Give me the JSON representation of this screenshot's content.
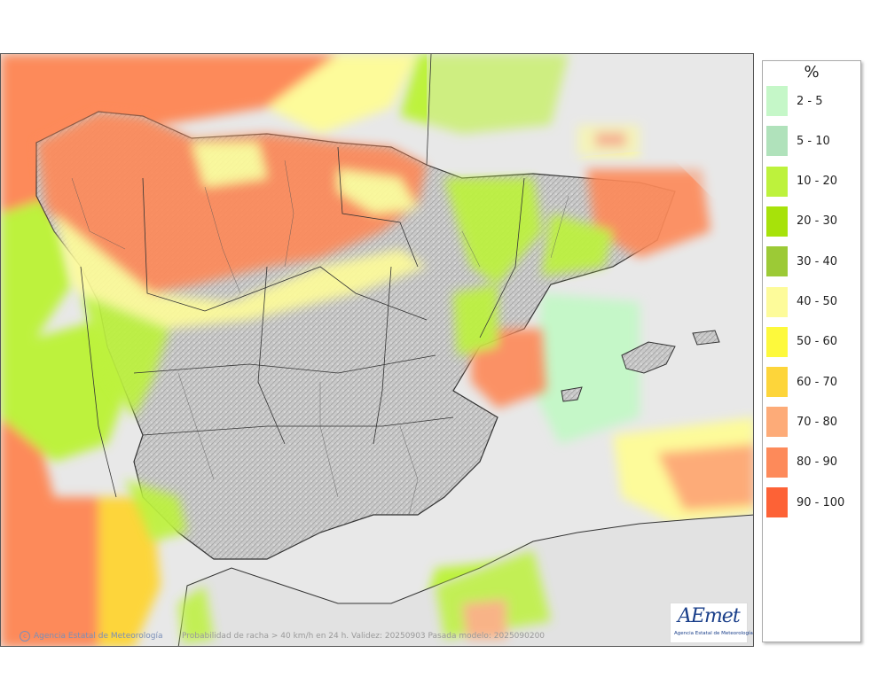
{
  "legend": {
    "title": "%",
    "items": [
      {
        "label": "2 - 5",
        "color": "#c5f7c8"
      },
      {
        "label": "5 - 10",
        "color": "#b0e2bb"
      },
      {
        "label": "10 - 20",
        "color": "#bdf23c"
      },
      {
        "label": "20 - 30",
        "color": "#a7e20a"
      },
      {
        "label": "30 - 40",
        "color": "#9cca36"
      },
      {
        "label": "40 - 50",
        "color": "#fdfb9a"
      },
      {
        "label": "50 - 60",
        "color": "#fdf93c"
      },
      {
        "label": "60 - 70",
        "color": "#fdd53a"
      },
      {
        "label": "70 - 80",
        "color": "#fdab78"
      },
      {
        "label": "80 - 90",
        "color": "#fd8a5a"
      },
      {
        "label": "90 - 100",
        "color": "#fd6236"
      }
    ]
  },
  "footer": {
    "credits": "Agencia Estatal de Meteorología",
    "caption": "Probabilidad de racha > 40 km/h en 24 h. Validez: 20250903 Pasada modelo: 2025090200"
  },
  "logo": {
    "wordmark": "AEmet",
    "subtitle": "Agencia Estatal de Meteorología"
  }
}
